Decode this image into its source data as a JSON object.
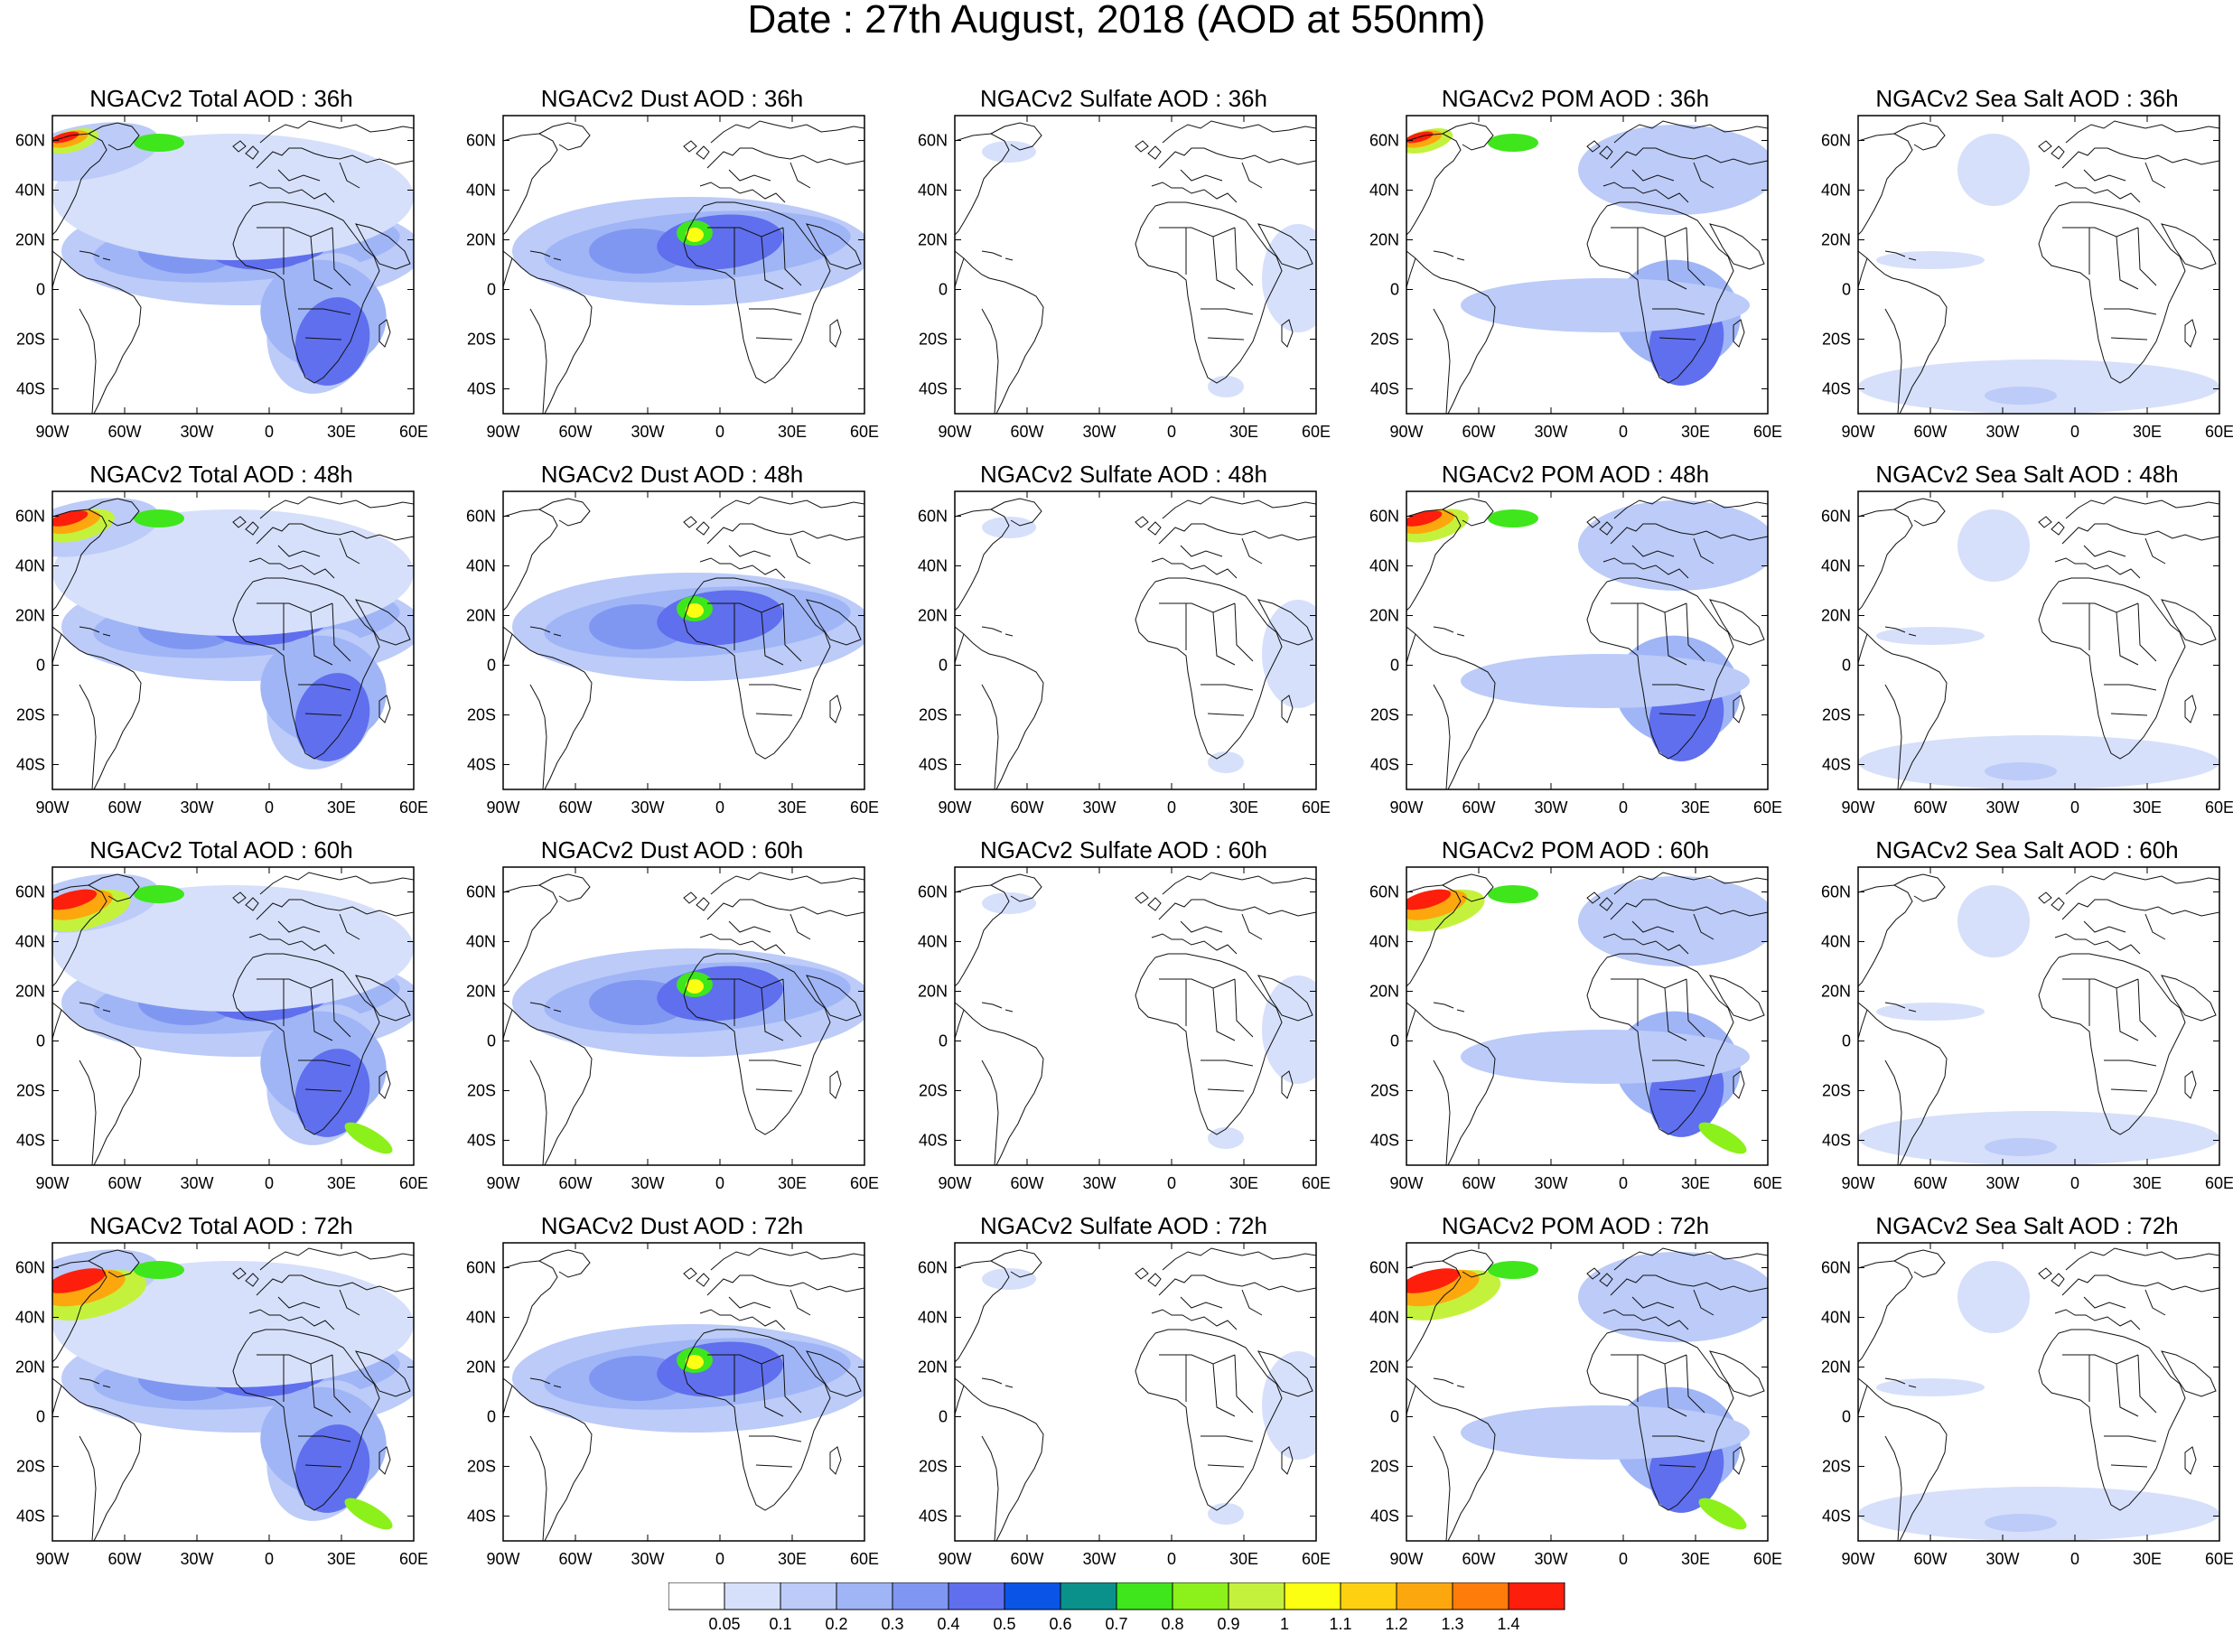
{
  "title": "Date : 27th August, 2018 (AOD at 550nm)",
  "columns": [
    {
      "key": "total",
      "label": "Total"
    },
    {
      "key": "dust",
      "label": "Dust"
    },
    {
      "key": "sulfate",
      "label": "Sulfate"
    },
    {
      "key": "pom",
      "label": "POM"
    },
    {
      "key": "seasalt",
      "label": "Sea Salt"
    }
  ],
  "panels": [
    [
      "NGACv2 Total AOD : 36h",
      "NGACv2 Dust AOD : 36h",
      "NGACv2 Sulfate AOD : 36h",
      "NGACv2 POM AOD : 36h",
      "NGACv2 Sea Salt AOD : 36h"
    ],
    [
      "NGACv2 Total AOD : 48h",
      "NGACv2 Dust AOD : 48h",
      "NGACv2 Sulfate AOD : 48h",
      "NGACv2 POM AOD : 48h",
      "NGACv2 Sea Salt AOD : 48h"
    ],
    [
      "NGACv2 Total AOD : 60h",
      "NGACv2 Dust AOD : 60h",
      "NGACv2 Sulfate AOD : 60h",
      "NGACv2 POM AOD : 60h",
      "NGACv2 Sea Salt AOD : 60h"
    ],
    [
      "NGACv2 Total AOD : 72h",
      "NGACv2 Dust AOD : 72h",
      "NGACv2 Sulfate AOD : 72h",
      "NGACv2 POM AOD : 72h",
      "NGACv2 Sea Salt  AOD : 72h"
    ]
  ],
  "map": {
    "lon_range": [
      -90,
      60
    ],
    "lat_range": [
      -50,
      70
    ],
    "y_ticks": [
      {
        "value": 60,
        "label": "60N"
      },
      {
        "value": 40,
        "label": "40N"
      },
      {
        "value": 20,
        "label": "20N"
      },
      {
        "value": 0,
        "label": "0"
      },
      {
        "value": -20,
        "label": "20S"
      },
      {
        "value": -40,
        "label": "40S"
      }
    ],
    "x_ticks": [
      {
        "value": -90,
        "label": "90W"
      },
      {
        "value": -60,
        "label": "60W"
      },
      {
        "value": -30,
        "label": "30W"
      },
      {
        "value": 0,
        "label": "0"
      },
      {
        "value": 30,
        "label": "30E"
      },
      {
        "value": 60,
        "label": "60E"
      }
    ]
  },
  "colorbar": {
    "colors": [
      "#ffffff",
      "#d6e0fb",
      "#bccbf8",
      "#a0b5f6",
      "#8097f2",
      "#5f6fee",
      "#0a55e6",
      "#0a918c",
      "#3fe61c",
      "#8cf01a",
      "#c4f23c",
      "#fcff12",
      "#fdd012",
      "#fda70e",
      "#fd7c0a",
      "#fd1e0c"
    ],
    "labels": [
      "0.05",
      "0.1",
      "0.2",
      "0.3",
      "0.4",
      "0.5",
      "0.6",
      "0.7",
      "0.8",
      "0.9",
      "1",
      "1.1",
      "1.2",
      "1.3",
      "1.4"
    ]
  }
}
